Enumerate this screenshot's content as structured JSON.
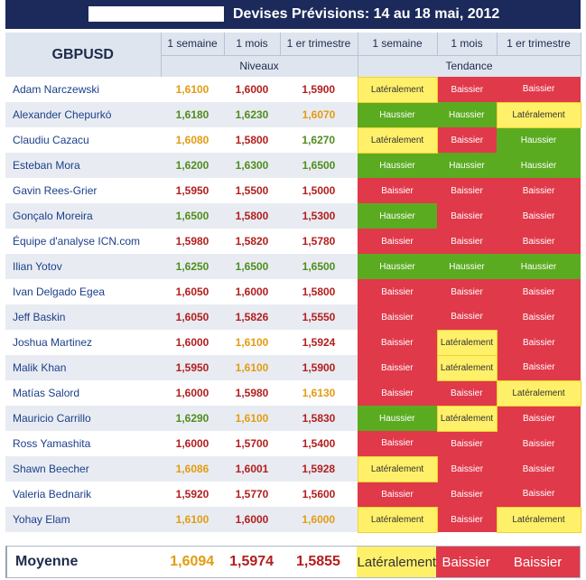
{
  "title": "Devises Prévisions: 14 au 18 mai, 2012",
  "pair": "GBPUSD",
  "columns": {
    "c1": "1 semaine",
    "c2": "1 mois",
    "c3": "1 er trimestre",
    "levels_group": "Niveaux",
    "trend_group": "Tendance"
  },
  "colors": {
    "header_bg": "#1b2a5a",
    "up": "#4f8d1c",
    "mid": "#e39b11",
    "down": "#b21e1e",
    "haussier_bg": "#5aab20",
    "baissier_bg": "#e0394a",
    "lateral_bg": "#fff06a"
  },
  "rows": [
    {
      "name": "Adam Narczewski",
      "l": [
        "1,6100",
        "1,6000",
        "1,5900"
      ],
      "lc": [
        "mid",
        "dn",
        "dn"
      ],
      "t": [
        "Latéralement",
        "Baissier",
        "Baissier"
      ]
    },
    {
      "name": "Alexander Chepurkó",
      "l": [
        "1,6180",
        "1,6230",
        "1,6070"
      ],
      "lc": [
        "up",
        "up",
        "mid"
      ],
      "t": [
        "Haussier",
        "Haussier",
        "Latéralement"
      ]
    },
    {
      "name": "Claudiu Cazacu",
      "l": [
        "1,6080",
        "1,5800",
        "1,6270"
      ],
      "lc": [
        "mid",
        "dn",
        "up"
      ],
      "t": [
        "Latéralement",
        "Baissier",
        "Haussier"
      ]
    },
    {
      "name": "Esteban Mora",
      "l": [
        "1,6200",
        "1,6300",
        "1,6500"
      ],
      "lc": [
        "up",
        "up",
        "up"
      ],
      "t": [
        "Haussier",
        "Haussier",
        "Haussier"
      ]
    },
    {
      "name": "Gavin Rees-Grier",
      "l": [
        "1,5950",
        "1,5500",
        "1,5000"
      ],
      "lc": [
        "dn",
        "dn",
        "dn"
      ],
      "t": [
        "Baissier",
        "Baissier",
        "Baissier"
      ]
    },
    {
      "name": "Gonçalo Moreira",
      "l": [
        "1,6500",
        "1,5800",
        "1,5300"
      ],
      "lc": [
        "up",
        "dn",
        "dn"
      ],
      "t": [
        "Haussier",
        "Baissier",
        "Baissier"
      ]
    },
    {
      "name": "Équipe d'analyse ICN.com",
      "l": [
        "1,5980",
        "1,5820",
        "1,5780"
      ],
      "lc": [
        "dn",
        "dn",
        "dn"
      ],
      "t": [
        "Baissier",
        "Baissier",
        "Baissier"
      ]
    },
    {
      "name": "Ilian Yotov",
      "l": [
        "1,6250",
        "1,6500",
        "1,6500"
      ],
      "lc": [
        "up",
        "up",
        "up"
      ],
      "t": [
        "Haussier",
        "Haussier",
        "Haussier"
      ]
    },
    {
      "name": "Ivan Delgado Egea",
      "l": [
        "1,6050",
        "1,6000",
        "1,5800"
      ],
      "lc": [
        "dn",
        "dn",
        "dn"
      ],
      "t": [
        "Baissier",
        "Baissier",
        "Baissier"
      ]
    },
    {
      "name": "Jeff Baskin",
      "l": [
        "1,6050",
        "1,5826",
        "1,5550"
      ],
      "lc": [
        "dn",
        "dn",
        "dn"
      ],
      "t": [
        "Baissier",
        "Baissier",
        "Baissier"
      ]
    },
    {
      "name": "Joshua Martinez",
      "l": [
        "1,6000",
        "1,6100",
        "1,5924"
      ],
      "lc": [
        "dn",
        "mid",
        "dn"
      ],
      "t": [
        "Baissier",
        "Latéralement",
        "Baissier"
      ]
    },
    {
      "name": "Malik Khan",
      "l": [
        "1,5950",
        "1,6100",
        "1,5900"
      ],
      "lc": [
        "dn",
        "mid",
        "dn"
      ],
      "t": [
        "Baissier",
        "Latéralement",
        "Baissier"
      ]
    },
    {
      "name": "Matías Salord",
      "l": [
        "1,6000",
        "1,5980",
        "1,6130"
      ],
      "lc": [
        "dn",
        "dn",
        "mid"
      ],
      "t": [
        "Baissier",
        "Baissier",
        "Latéralement"
      ]
    },
    {
      "name": "Mauricio Carrillo",
      "l": [
        "1,6290",
        "1,6100",
        "1,5830"
      ],
      "lc": [
        "up",
        "mid",
        "dn"
      ],
      "t": [
        "Haussier",
        "Latéralement",
        "Baissier"
      ]
    },
    {
      "name": "Ross Yamashita",
      "l": [
        "1,6000",
        "1,5700",
        "1,5400"
      ],
      "lc": [
        "dn",
        "dn",
        "dn"
      ],
      "t": [
        "Baissier",
        "Baissier",
        "Baissier"
      ]
    },
    {
      "name": "Shawn Beecher",
      "l": [
        "1,6086",
        "1,6001",
        "1,5928"
      ],
      "lc": [
        "mid",
        "dn",
        "dn"
      ],
      "t": [
        "Latéralement",
        "Baissier",
        "Baissier"
      ]
    },
    {
      "name": "Valeria Bednarik",
      "l": [
        "1,5920",
        "1,5770",
        "1,5600"
      ],
      "lc": [
        "dn",
        "dn",
        "dn"
      ],
      "t": [
        "Baissier",
        "Baissier",
        "Baissier"
      ]
    },
    {
      "name": "Yohay Elam",
      "l": [
        "1,6100",
        "1,6000",
        "1,6000"
      ],
      "lc": [
        "mid",
        "dn",
        "mid"
      ],
      "t": [
        "Latéralement",
        "Baissier",
        "Latéralement"
      ]
    }
  ],
  "average": {
    "label": "Moyenne",
    "l": [
      "1,6094",
      "1,5974",
      "1,5855"
    ],
    "lc": [
      "mid",
      "dn",
      "dn"
    ],
    "t": [
      "Latéralement",
      "Baissier",
      "Baissier"
    ]
  }
}
